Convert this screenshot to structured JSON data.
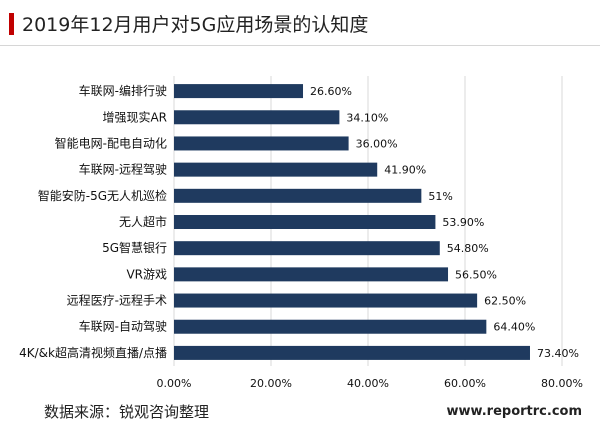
{
  "title": "2019年12月用户对5G应用场景的认知度",
  "source": "数据来源：锐观咨询整理",
  "website": "www.reportrc.com",
  "colors": {
    "bar": "#1f3a5f",
    "accent": "#c00000",
    "grid": "#d9d9d9"
  },
  "chart_data": {
    "type": "bar",
    "orientation": "horizontal",
    "categories": [
      "车联网-编排行驶",
      "增强现实AR",
      "智能电网-配电自动化",
      "车联网-远程驾驶",
      "智能安防-5G无人机巡检",
      "无人超市",
      "5G智慧银行",
      "VR游戏",
      "远程医疗-远程手术",
      "车联网-自动驾驶",
      "4K/&k超高清视频直播/点播"
    ],
    "values": [
      26.6,
      34.1,
      36.0,
      41.9,
      51,
      53.9,
      54.8,
      56.5,
      62.5,
      64.4,
      73.4
    ],
    "value_labels": [
      "26.60%",
      "34.10%",
      "36.00%",
      "41.90%",
      "51%",
      "53.90%",
      "54.80%",
      "56.50%",
      "62.50%",
      "64.40%",
      "73.40%"
    ],
    "xlim": [
      0,
      80
    ],
    "xticks": [
      0,
      20,
      40,
      60,
      80
    ],
    "xtick_labels": [
      "0.00%",
      "20.00%",
      "40.00%",
      "60.00%",
      "80.00%"
    ],
    "grid": true,
    "legend": "none"
  }
}
